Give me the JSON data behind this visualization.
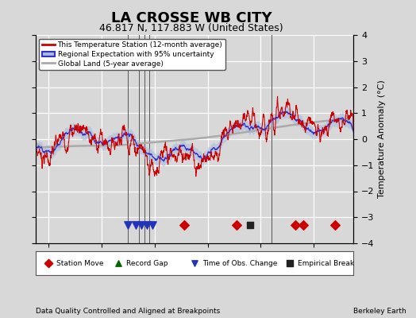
{
  "title": "LA CROSSE WB CITY",
  "subtitle": "46.817 N, 117.883 W (United States)",
  "ylabel": "Temperature Anomaly (°C)",
  "xlabel_note": "Data Quality Controlled and Aligned at Breakpoints",
  "credit": "Berkeley Earth",
  "xlim": [
    1895,
    2015
  ],
  "ylim": [
    -4,
    4
  ],
  "yticks": [
    -4,
    -3,
    -2,
    -1,
    0,
    1,
    2,
    3,
    4
  ],
  "xticks": [
    1900,
    1920,
    1940,
    1960,
    1980,
    2000
  ],
  "bg_color": "#d8d8d8",
  "plot_bg_color": "#d8d8d8",
  "grid_color": "#ffffff",
  "title_fontsize": 13,
  "subtitle_fontsize": 9,
  "axis_fontsize": 8,
  "tick_fontsize": 8,
  "vertical_lines_x": [
    1930,
    1934,
    1936,
    1938,
    1984
  ],
  "station_move_x": [
    1951,
    1971,
    1993,
    1996,
    2008
  ],
  "obs_change_x": [
    1930,
    1933,
    1935,
    1937,
    1939
  ],
  "empirical_break_x": [
    1976
  ],
  "record_gap_x": [],
  "marker_y": -3.3,
  "legend_items": [
    "This Temperature Station (12-month average)",
    "Regional Expectation with 95% uncertainty",
    "Global Land (5-year average)"
  ],
  "line_red": "#cc0000",
  "line_blue": "#3333cc",
  "line_gray": "#aaaaaa",
  "uncertainty_fill": "#aabbdd",
  "marker_red": "#cc0000",
  "marker_blue": "#2233bb",
  "marker_black": "#222222",
  "marker_green": "#006600"
}
